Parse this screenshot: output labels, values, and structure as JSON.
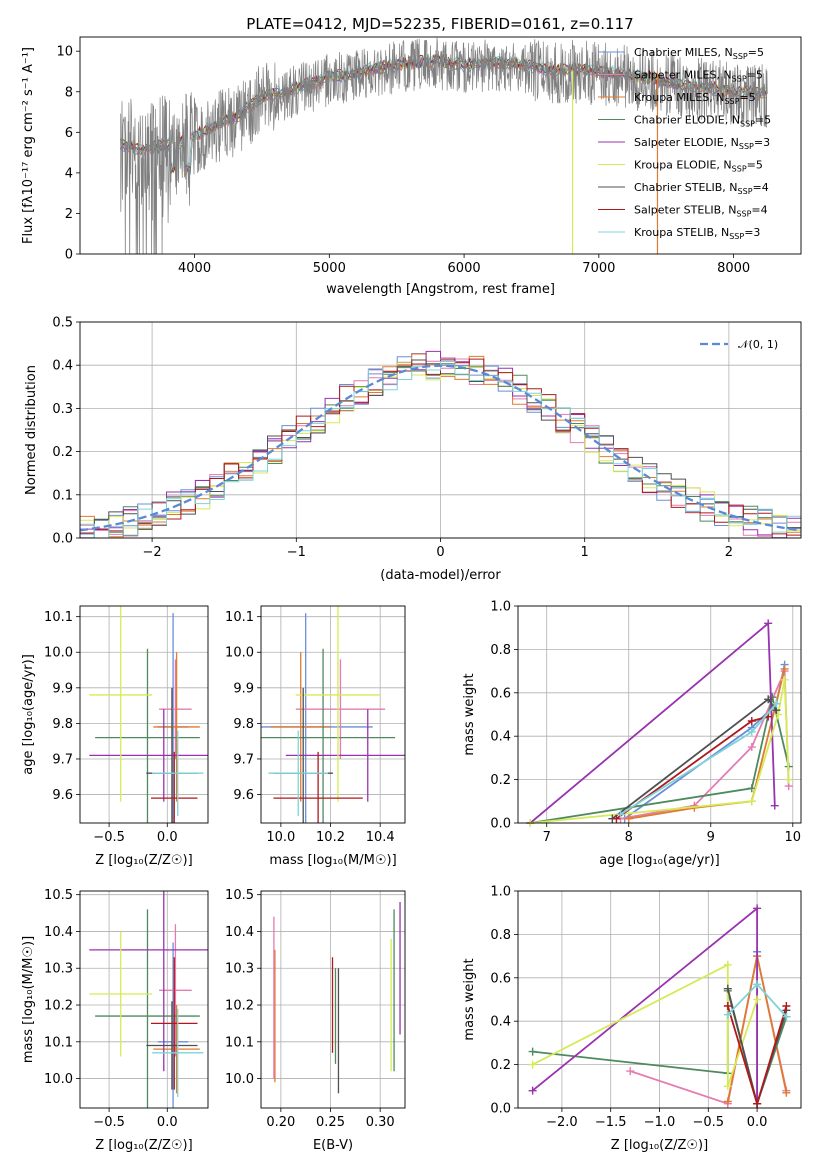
{
  "chart_data": [
    {
      "panel": "spectrum",
      "type": "line",
      "title": "PLATE=0412, MJD=52235, FIBERID=0161, z=0.117",
      "xlabel": "wavelength [Angstrom, rest frame]",
      "ylabel": "Flux [fλ10⁻¹⁷ erg cm⁻² s⁻¹ A⁻¹]",
      "xlim": [
        3150,
        8500
      ],
      "ylim": [
        0,
        10.7
      ],
      "xticks": [
        "4000",
        "5000",
        "6000",
        "7000",
        "8000"
      ],
      "yticks": [
        "0",
        "2",
        "4",
        "6",
        "8",
        "10"
      ],
      "data_color": "#808080",
      "data_range": [
        3450,
        8250
      ],
      "continuum": [
        [
          3450,
          5.3
        ],
        [
          3600,
          5.0
        ],
        [
          3750,
          5.2
        ],
        [
          3900,
          5.4
        ],
        [
          4000,
          5.7
        ],
        [
          4100,
          6.0
        ],
        [
          4200,
          6.4
        ],
        [
          4300,
          6.6
        ],
        [
          4400,
          7.1
        ],
        [
          4500,
          7.6
        ],
        [
          4600,
          7.8
        ],
        [
          4700,
          7.9
        ],
        [
          4800,
          8.2
        ],
        [
          4900,
          8.3
        ],
        [
          5000,
          8.6
        ],
        [
          5200,
          8.8
        ],
        [
          5400,
          9.1
        ],
        [
          5600,
          9.3
        ],
        [
          5800,
          9.4
        ],
        [
          6000,
          9.2
        ],
        [
          6200,
          9.3
        ],
        [
          6400,
          9.3
        ],
        [
          6600,
          9.0
        ],
        [
          6800,
          9.0
        ],
        [
          7000,
          8.9
        ],
        [
          7200,
          8.7
        ],
        [
          7400,
          8.5
        ],
        [
          7600,
          8.2
        ],
        [
          7800,
          8.1
        ],
        [
          8000,
          7.9
        ],
        [
          8250,
          7.8
        ]
      ],
      "legend": [
        {
          "name": "Chabrier MILES, N_SSP=5",
          "color": "#6a8fd8"
        },
        {
          "name": "Salpeter MILES, N_SSP=5",
          "color": "#e57bb0"
        },
        {
          "name": "Kroupa MILES, N_SSP=5",
          "color": "#e07a2e"
        },
        {
          "name": "Chabrier ELODIE, N_SSP=5",
          "color": "#4e8a5e"
        },
        {
          "name": "Salpeter ELODIE, N_SSP=3",
          "color": "#9a32b0"
        },
        {
          "name": "Kroupa ELODIE, N_SSP=5",
          "color": "#d6ea55"
        },
        {
          "name": "Chabrier STELIB, N_SSP=4",
          "color": "#505050"
        },
        {
          "name": "Salpeter STELIB, N_SSP=4",
          "color": "#b0191a"
        },
        {
          "name": "Kroupa STELIB, N_SSP=3",
          "color": "#7fd3d8"
        }
      ],
      "legend_prefix": [
        "Chabrier MILES, N",
        "Salpeter MILES, N",
        "Kroupa MILES, N",
        "Chabrier ELODIE, N",
        "Salpeter ELODIE, N",
        "Kroupa ELODIE, N",
        "Chabrier STELIB, N",
        "Salpeter STELIB, N",
        "Kroupa STELIB, N"
      ],
      "legend_sub": "SSP",
      "legend_suffix": [
        "=5",
        "=5",
        "=5",
        "=5",
        "=3",
        "=5",
        "=4",
        "=4",
        "=3"
      ]
    },
    {
      "panel": "residual-histogram",
      "type": "bar",
      "xlabel": "(data-model)/error",
      "ylabel": "Normed distribution",
      "xlim": [
        -2.5,
        2.5
      ],
      "ylim": [
        0,
        0.5
      ],
      "xticks": [
        "−2",
        "−1",
        "0",
        "1",
        "2"
      ],
      "yticks": [
        "0.0",
        "0.1",
        "0.2",
        "0.3",
        "0.4",
        "0.5"
      ],
      "bin_width": 0.1,
      "reference_label": "𝒩(0, 1)",
      "reference_color": "#5a8ad6"
    },
    {
      "panel": "age-vs-metallicity",
      "type": "scatter",
      "xlabel": "Z [log₁₀(Z/Z☉)]",
      "ylabel": "age  [log₁₀(age/yr)]",
      "xlim": [
        -0.75,
        0.35
      ],
      "ylim": [
        9.52,
        10.13
      ],
      "xticks": [
        "−0.5",
        "0.0"
      ],
      "yticks": [
        "9.6",
        "9.7",
        "9.8",
        "9.9",
        "10.0",
        "10.1"
      ],
      "points": [
        {
          "x": 0.05,
          "xerr": 0.13,
          "y": 9.79,
          "yerr": 0.32,
          "color": "#6a8fd8"
        },
        {
          "x": 0.07,
          "xerr": 0.14,
          "y": 9.84,
          "yerr": 0.14,
          "color": "#e57bb0"
        },
        {
          "x": 0.08,
          "xerr": 0.2,
          "y": 9.79,
          "yerr": 0.21,
          "color": "#e07a2e"
        },
        {
          "x": -0.17,
          "xerr": 0.45,
          "y": 9.76,
          "yerr": 0.25,
          "color": "#4e8a5e"
        },
        {
          "x": -0.03,
          "xerr": 0.64,
          "y": 9.71,
          "yerr": 0.13,
          "color": "#9a32b0"
        },
        {
          "x": -0.4,
          "xerr": 0.27,
          "y": 9.88,
          "yerr": 0.3,
          "color": "#d6ea55"
        },
        {
          "x": 0.04,
          "xerr": 0.22,
          "y": 9.66,
          "yerr": 0.24,
          "color": "#505050"
        },
        {
          "x": 0.06,
          "xerr": 0.2,
          "y": 9.59,
          "yerr": 0.13,
          "color": "#b0191a"
        },
        {
          "x": 0.09,
          "xerr": 0.22,
          "y": 9.66,
          "yerr": 0.12,
          "color": "#7fd3d8"
        }
      ]
    },
    {
      "panel": "age-vs-mass",
      "type": "scatter",
      "xlabel": "mass [log₁₀(M/M☉)]",
      "ylabel": "",
      "xlim": [
        9.92,
        10.5
      ],
      "ylim": [
        9.52,
        10.13
      ],
      "xticks": [
        "10.0",
        "10.2",
        "10.4"
      ],
      "yticks": [
        "9.6",
        "9.7",
        "9.8",
        "9.9",
        "10.0",
        "10.1"
      ],
      "points": [
        {
          "x": 10.1,
          "xerr": 0.27,
          "y": 9.79,
          "yerr": 0.32,
          "color": "#6a8fd8"
        },
        {
          "x": 10.24,
          "xerr": 0.18,
          "y": 9.84,
          "yerr": 0.14,
          "color": "#e57bb0"
        },
        {
          "x": 10.08,
          "xerr": 0.12,
          "y": 9.79,
          "yerr": 0.21,
          "color": "#e07a2e"
        },
        {
          "x": 10.17,
          "xerr": 0.29,
          "y": 9.76,
          "yerr": 0.25,
          "color": "#4e8a5e"
        },
        {
          "x": 10.35,
          "xerr": 0.33,
          "y": 9.71,
          "yerr": 0.13,
          "color": "#9a32b0"
        },
        {
          "x": 10.23,
          "xerr": 0.17,
          "y": 9.88,
          "yerr": 0.3,
          "color": "#d6ea55"
        },
        {
          "x": 10.09,
          "xerr": 0.12,
          "y": 9.66,
          "yerr": 0.24,
          "color": "#505050"
        },
        {
          "x": 10.15,
          "xerr": 0.18,
          "y": 9.59,
          "yerr": 0.13,
          "color": "#b0191a"
        },
        {
          "x": 10.07,
          "xerr": 0.12,
          "y": 9.66,
          "yerr": 0.12,
          "color": "#7fd3d8"
        }
      ]
    },
    {
      "panel": "mass-weight-vs-age",
      "type": "line",
      "xlabel": "age  [log₁₀(age/yr)]",
      "ylabel": "mass weight",
      "xlim": [
        6.65,
        10.1
      ],
      "ylim": [
        0,
        1.0
      ],
      "xticks": [
        "7",
        "8",
        "9",
        "10"
      ],
      "yticks": [
        "0.0",
        "0.2",
        "0.4",
        "0.6",
        "0.8",
        "1.0"
      ],
      "series": [
        {
          "color": "#6a8fd8",
          "x": [
            7.95,
            9.5,
            9.8,
            9.9
          ],
          "y": [
            0.02,
            0.44,
            0.55,
            0.73
          ]
        },
        {
          "color": "#e57bb0",
          "x": [
            7.9,
            8.8,
            9.5,
            9.9,
            9.95
          ],
          "y": [
            0.02,
            0.08,
            0.35,
            0.7,
            0.17
          ]
        },
        {
          "color": "#e07a2e",
          "x": [
            8.0,
            8.8,
            9.5,
            9.9
          ],
          "y": [
            0.02,
            0.07,
            0.1,
            0.71
          ]
        },
        {
          "color": "#4e8a5e",
          "x": [
            6.8,
            9.5,
            9.75,
            9.95
          ],
          "y": [
            0.0,
            0.16,
            0.58,
            0.26
          ]
        },
        {
          "color": "#9a32b0",
          "x": [
            6.8,
            9.7,
            9.78
          ],
          "y": [
            0.0,
            0.92,
            0.08
          ]
        },
        {
          "color": "#d6ea55",
          "x": [
            6.8,
            9.5,
            9.82,
            9.9,
            9.95
          ],
          "y": [
            0.0,
            0.1,
            0.5,
            0.66,
            0.2
          ]
        },
        {
          "color": "#505050",
          "x": [
            7.8,
            9.7,
            9.8
          ],
          "y": [
            0.02,
            0.57,
            0.52
          ]
        },
        {
          "color": "#b0191a",
          "x": [
            7.85,
            9.5,
            9.7
          ],
          "y": [
            0.02,
            0.47,
            0.49
          ]
        },
        {
          "color": "#7fd3d8",
          "x": [
            7.9,
            9.5,
            9.8
          ],
          "y": [
            0.04,
            0.42,
            0.55
          ]
        }
      ]
    },
    {
      "panel": "mass-vs-metallicity",
      "type": "scatter",
      "xlabel": "Z [log₁₀(Z/Z☉)]",
      "ylabel": "mass [log₁₀(M/M☉)]",
      "xlim": [
        -0.75,
        0.35
      ],
      "ylim": [
        9.92,
        10.51
      ],
      "xticks": [
        "−0.5",
        "0.0"
      ],
      "yticks": [
        "10.0",
        "10.1",
        "10.2",
        "10.3",
        "10.4",
        "10.5"
      ],
      "points": [
        {
          "x": 0.05,
          "xerr": 0.13,
          "y": 10.1,
          "yerr": 0.27,
          "color": "#6a8fd8"
        },
        {
          "x": 0.07,
          "xerr": 0.14,
          "y": 10.24,
          "yerr": 0.18,
          "color": "#e57bb0"
        },
        {
          "x": 0.08,
          "xerr": 0.2,
          "y": 10.08,
          "yerr": 0.12,
          "color": "#e07a2e"
        },
        {
          "x": -0.17,
          "xerr": 0.45,
          "y": 10.17,
          "yerr": 0.29,
          "color": "#4e8a5e"
        },
        {
          "x": -0.03,
          "xerr": 0.64,
          "y": 10.35,
          "yerr": 0.33,
          "color": "#9a32b0"
        },
        {
          "x": -0.4,
          "xerr": 0.27,
          "y": 10.23,
          "yerr": 0.17,
          "color": "#d6ea55"
        },
        {
          "x": 0.04,
          "xerr": 0.22,
          "y": 10.09,
          "yerr": 0.12,
          "color": "#505050"
        },
        {
          "x": 0.06,
          "xerr": 0.2,
          "y": 10.15,
          "yerr": 0.18,
          "color": "#b0191a"
        },
        {
          "x": 0.09,
          "xerr": 0.22,
          "y": 10.07,
          "yerr": 0.12,
          "color": "#7fd3d8"
        }
      ]
    },
    {
      "panel": "mass-vs-ebv",
      "type": "scatter",
      "xlabel": "E(B-V)",
      "ylabel": "",
      "xlim": [
        0.18,
        0.325
      ],
      "ylim": [
        9.92,
        10.51
      ],
      "xticks": [
        "0.20",
        "0.25",
        "0.30"
      ],
      "yticks": [
        "10.0",
        "10.1",
        "10.2",
        "10.3",
        "10.4",
        "10.5"
      ],
      "points": [
        {
          "x": 0.194,
          "xerr": 0,
          "y": 10.17,
          "yerr": 0.18,
          "color": "#e07a2e"
        },
        {
          "x": 0.193,
          "xerr": 0,
          "y": 10.22,
          "yerr": 0.22,
          "color": "#e57bb0"
        },
        {
          "x": 0.252,
          "xerr": 0,
          "y": 10.2,
          "yerr": 0.13,
          "color": "#b0191a"
        },
        {
          "x": 0.255,
          "xerr": 0,
          "y": 10.17,
          "yerr": 0.13,
          "color": "#4e8a5e"
        },
        {
          "x": 0.258,
          "xerr": 0,
          "y": 10.13,
          "yerr": 0.17,
          "color": "#505050"
        },
        {
          "x": 0.311,
          "xerr": 0,
          "y": 10.2,
          "yerr": 0.18,
          "color": "#d6ea55"
        },
        {
          "x": 0.314,
          "xerr": 0,
          "y": 10.24,
          "yerr": 0.22,
          "color": "#4e8a5e"
        },
        {
          "x": 0.32,
          "xerr": 0,
          "y": 10.3,
          "yerr": 0.18,
          "color": "#9a32b0"
        }
      ]
    },
    {
      "panel": "mass-weight-vs-metallicity",
      "type": "line",
      "xlabel": "Z [log₁₀(Z/Z☉)]",
      "ylabel": "mass weight",
      "xlim": [
        -2.45,
        0.45
      ],
      "ylim": [
        0,
        1.0
      ],
      "xticks": [
        "−2.0",
        "−1.5",
        "−1.0",
        "−0.5",
        "0.0"
      ],
      "yticks": [
        "0.0",
        "0.2",
        "0.4",
        "0.6",
        "0.8",
        "1.0"
      ],
      "series": [
        {
          "color": "#6a8fd8",
          "x": [
            0.0,
            0.0,
            0.3
          ],
          "y": [
            0.72,
            0.02,
            0.42
          ]
        },
        {
          "color": "#e57bb0",
          "x": [
            -1.3,
            -0.3,
            0.0,
            0.3
          ],
          "y": [
            0.17,
            0.02,
            0.7,
            0.08
          ]
        },
        {
          "color": "#e07a2e",
          "x": [
            -0.3,
            0.0,
            0.3
          ],
          "y": [
            0.03,
            0.7,
            0.07
          ]
        },
        {
          "color": "#4e8a5e",
          "x": [
            -2.3,
            -0.3,
            -0.3,
            0.0,
            0.3
          ],
          "y": [
            0.26,
            0.16,
            0.54,
            0.02,
            0.42
          ]
        },
        {
          "color": "#9a32b0",
          "x": [
            -2.3,
            0.0,
            0.0
          ],
          "y": [
            0.08,
            0.92,
            0.02
          ]
        },
        {
          "color": "#d6ea55",
          "x": [
            -2.3,
            -0.3,
            -0.3,
            0.0
          ],
          "y": [
            0.2,
            0.66,
            0.1,
            0.5
          ]
        },
        {
          "color": "#505050",
          "x": [
            -0.3,
            0.0,
            0.3
          ],
          "y": [
            0.55,
            0.02,
            0.45
          ]
        },
        {
          "color": "#b0191a",
          "x": [
            -0.3,
            0.0,
            0.3
          ],
          "y": [
            0.47,
            0.02,
            0.47
          ]
        },
        {
          "color": "#7fd3d8",
          "x": [
            -0.3,
            0.0,
            0.3
          ],
          "y": [
            0.43,
            0.57,
            0.42
          ]
        }
      ]
    }
  ]
}
